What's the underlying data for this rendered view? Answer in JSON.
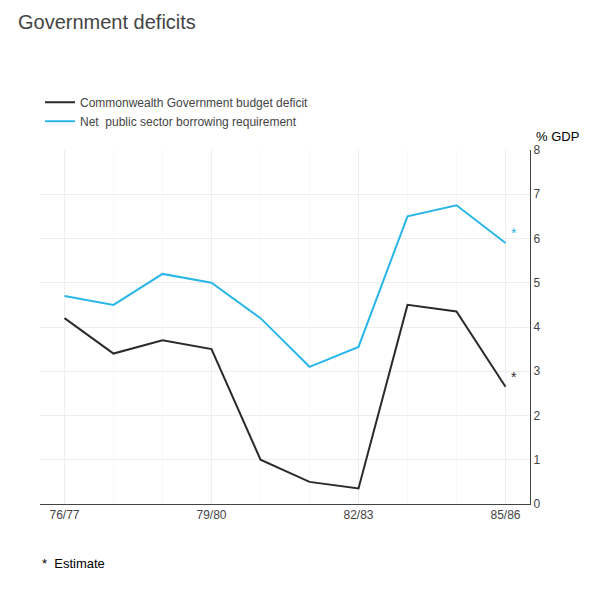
{
  "chart_data": {
    "type": "line",
    "title": "Government deficits",
    "y_label": "% GDP",
    "categories": [
      "76/77",
      null,
      null,
      "79/80",
      null,
      null,
      "82/83",
      null,
      null,
      "85/86"
    ],
    "series": [
      {
        "name": "Commonwealth Government budget deficit",
        "color": "#2a2a2a",
        "values": [
          4.2,
          3.4,
          3.7,
          3.5,
          1.0,
          0.5,
          0.35,
          4.5,
          4.35,
          2.65
        ]
      },
      {
        "name": "Net  public sector borrowing requirement",
        "color": "#29b6e8",
        "values": [
          4.7,
          4.5,
          5.2,
          5.0,
          4.2,
          3.1,
          3.55,
          6.5,
          6.75,
          5.9
        ]
      }
    ],
    "ylim": [
      0,
      8
    ],
    "yticks": [
      0,
      1,
      2,
      3,
      4,
      5,
      6,
      7,
      8
    ],
    "grid": true,
    "legend": "top left",
    "annotations": [
      {
        "text": "*",
        "series": "Commonwealth Government budget deficit"
      },
      {
        "text": "*",
        "series": "Net  public sector borrowing requirement"
      },
      {
        "text": "*  Estimate"
      }
    ]
  }
}
